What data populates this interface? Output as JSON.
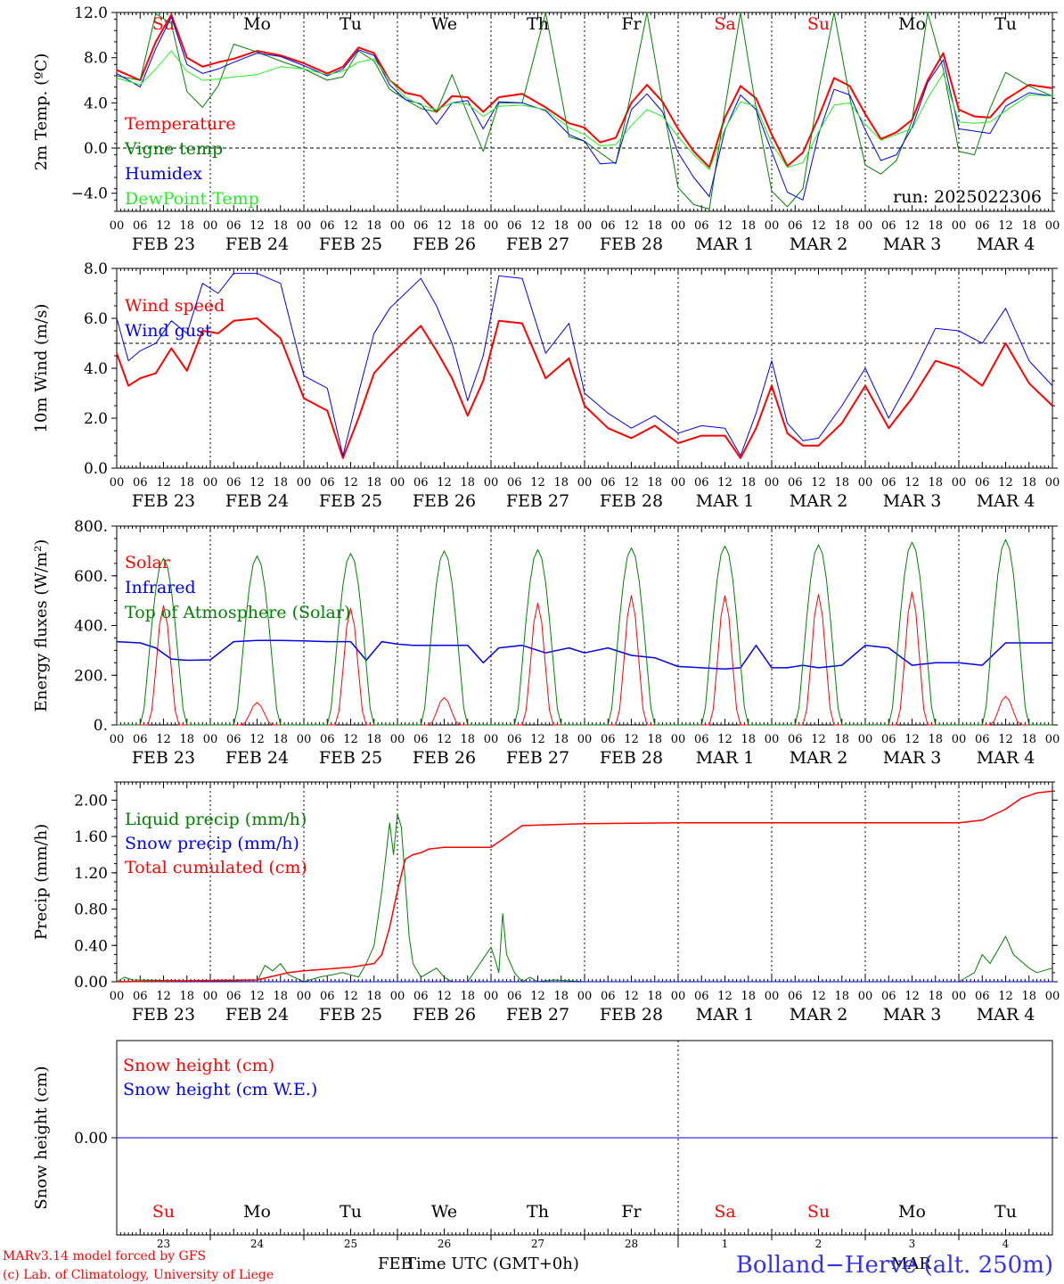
{
  "colors": {
    "red": "#ff0000",
    "darkred": "#e00000",
    "green": "#008000",
    "blue": "#0000ee",
    "lightgreen": "#22ee22",
    "site": "#3333ee"
  },
  "day_names": [
    "Su",
    "Mo",
    "Tu",
    "We",
    "Th",
    "Fr",
    "Sa",
    "Su",
    "Mo",
    "Tu"
  ],
  "date_labels": [
    "FEB 23",
    "FEB 24",
    "FEB 25",
    "FEB 26",
    "FEB 27",
    "FEB 28",
    "MAR  1",
    "MAR  2",
    "MAR  3",
    "MAR  4"
  ],
  "hour_labels": [
    "00",
    "06",
    "12",
    "18"
  ],
  "last_hour_label": "00",
  "weekend_days": [
    0,
    6,
    7
  ],
  "day_numbers": [
    "23",
    "24",
    "25",
    "26",
    "27",
    "28",
    "1",
    "2",
    "3",
    "4"
  ],
  "footer": {
    "model": "MARv3.14 model forced by GFS",
    "credit": "(c) Lab. of Climatology, University of Liege",
    "xlabel": "Time UTC (GMT+0h)",
    "month_left": "FEB",
    "month_right": "MAR",
    "site": "Bolland−Herve (alt. 250m)"
  },
  "chart_data": [
    {
      "type": "line",
      "id": "temp",
      "ylabel": "2m Temp. (ºC)",
      "ylim": [
        -5.6,
        12.0
      ],
      "yticks": [
        12.0,
        8.0,
        4.0,
        0.0,
        -4.0
      ],
      "ytick_labels": [
        "12.0",
        "8.0",
        "4.0",
        "0.0",
        "−4.0"
      ],
      "ref_line": 0.0,
      "annotation": "run: 2025022306",
      "x_hours": [
        0,
        6,
        10,
        14,
        18,
        22,
        26,
        30,
        36,
        42,
        48,
        54,
        58,
        62,
        66,
        70,
        74,
        78,
        82,
        86,
        90,
        94,
        98,
        104,
        110,
        116,
        120,
        124,
        128,
        132,
        136,
        140,
        144,
        148,
        152,
        156,
        160,
        164,
        168,
        172,
        176,
        180,
        184,
        188,
        192,
        196,
        200,
        204,
        208,
        212,
        216,
        220,
        224,
        228,
        234,
        240
      ],
      "series": [
        {
          "name": "Temperature",
          "color": "#ff0000",
          "width": 2,
          "values": [
            6.9,
            6.0,
            9.4,
            11.8,
            8.0,
            7.2,
            7.6,
            7.9,
            8.6,
            8.2,
            7.5,
            6.6,
            7.2,
            8.9,
            8.4,
            6.0,
            4.9,
            4.6,
            3.2,
            4.6,
            4.5,
            3.2,
            4.5,
            4.8,
            3.6,
            2.2,
            1.8,
            0.5,
            0.9,
            4.0,
            5.6,
            4.1,
            1.7,
            -0.3,
            -1.7,
            2.7,
            5.5,
            4.4,
            1.2,
            -1.6,
            -0.4,
            2.7,
            6.2,
            5.5,
            3.0,
            0.8,
            1.4,
            2.5,
            6.0,
            8.4,
            3.4,
            2.8,
            2.7,
            4.3,
            5.6,
            5.3
          ]
        },
        {
          "name": "Vigne temp",
          "color": "#008000",
          "width": 1,
          "values": [
            6.4,
            6.0,
            11.9,
            11.0,
            5.0,
            3.6,
            5.5,
            9.2,
            8.5,
            7.7,
            7.0,
            6.0,
            6.3,
            8.6,
            7.7,
            5.2,
            4.3,
            3.5,
            3.2,
            6.5,
            3.0,
            -0.3,
            4.0,
            4.0,
            12.0,
            1.0,
            0.6,
            -0.4,
            -1.4,
            5.0,
            12.0,
            4.0,
            -3.5,
            -5.0,
            -5.4,
            3.5,
            12.0,
            3.5,
            -3.8,
            -5.2,
            -3.6,
            5.0,
            12.0,
            4.5,
            -1.5,
            -2.3,
            -1.1,
            2.4,
            12.0,
            7.0,
            -0.3,
            -0.6,
            3.5,
            6.7,
            5.5,
            4.6
          ]
        },
        {
          "name": "Humidex",
          "color": "#0000ee",
          "width": 1,
          "values": [
            6.6,
            5.4,
            8.8,
            11.6,
            7.4,
            6.6,
            7.0,
            7.6,
            8.4,
            8.1,
            7.3,
            6.4,
            7.0,
            8.7,
            8.2,
            5.6,
            4.3,
            3.9,
            2.1,
            4.0,
            4.2,
            1.7,
            4.1,
            4.0,
            3.3,
            1.2,
            0.6,
            -1.4,
            -1.3,
            3.4,
            4.8,
            3.2,
            -0.4,
            -2.6,
            -4.3,
            1.6,
            4.7,
            3.4,
            -0.3,
            -3.9,
            -4.6,
            1.2,
            5.2,
            4.7,
            1.6,
            -1.1,
            -0.6,
            1.8,
            5.8,
            7.8,
            1.7,
            1.5,
            1.3,
            3.7,
            4.9,
            4.6
          ]
        },
        {
          "name": "DewPoint Temp",
          "color": "#22ee22",
          "width": 1,
          "values": [
            6.2,
            5.6,
            7.0,
            8.6,
            6.8,
            6.0,
            6.1,
            6.3,
            6.5,
            7.2,
            7.0,
            6.5,
            6.8,
            7.6,
            7.9,
            6.0,
            4.5,
            3.8,
            3.4,
            4.0,
            3.9,
            2.8,
            3.7,
            3.8,
            3.4,
            1.8,
            1.2,
            0.2,
            0.3,
            2.0,
            3.4,
            2.8,
            1.0,
            -0.6,
            -1.9,
            1.7,
            4.1,
            3.7,
            0.4,
            -1.7,
            -1.3,
            1.4,
            3.8,
            4.0,
            2.1,
            0.7,
            1.2,
            1.7,
            4.4,
            6.6,
            2.3,
            2.2,
            2.3,
            3.3,
            4.7,
            4.6
          ]
        }
      ]
    },
    {
      "type": "line",
      "id": "wind",
      "ylabel": "10m Wind (m/s)",
      "ylim": [
        0.0,
        8.0
      ],
      "yticks": [
        8.0,
        6.0,
        4.0,
        2.0,
        0.0
      ],
      "ytick_labels": [
        "8.0",
        "6.0",
        "4.0",
        "2.0",
        "0.0"
      ],
      "ref_line": 5.0,
      "x_hours": [
        0,
        3,
        6,
        10,
        14,
        18,
        22,
        26,
        30,
        36,
        42,
        48,
        54,
        58,
        62,
        66,
        70,
        74,
        78,
        82,
        86,
        90,
        94,
        98,
        104,
        110,
        116,
        120,
        126,
        132,
        138,
        144,
        150,
        156,
        160,
        164,
        168,
        172,
        176,
        180,
        186,
        192,
        198,
        204,
        210,
        216,
        222,
        228,
        234,
        240
      ],
      "series": [
        {
          "name": "Wind speed",
          "color": "#ff0000",
          "width": 2,
          "values": [
            4.6,
            3.3,
            3.6,
            3.8,
            4.8,
            3.9,
            5.5,
            5.4,
            5.9,
            6.0,
            5.2,
            2.8,
            2.3,
            0.4,
            2.0,
            3.8,
            4.5,
            5.1,
            5.7,
            4.7,
            3.6,
            2.1,
            3.5,
            5.9,
            5.8,
            3.6,
            4.4,
            2.5,
            1.6,
            1.2,
            1.7,
            1.0,
            1.3,
            1.3,
            0.4,
            1.6,
            3.3,
            1.4,
            0.9,
            0.9,
            1.8,
            3.3,
            1.6,
            2.8,
            4.3,
            4.0,
            3.3,
            5.0,
            3.4,
            2.5
          ]
        },
        {
          "name": "Wind gust",
          "color": "#0000ee",
          "width": 1,
          "values": [
            6.0,
            4.3,
            4.7,
            5.0,
            5.9,
            5.4,
            7.4,
            7.0,
            7.8,
            7.8,
            7.4,
            3.7,
            3.2,
            0.5,
            3.0,
            5.4,
            6.4,
            7.0,
            7.6,
            6.5,
            5.0,
            2.7,
            4.5,
            7.7,
            7.6,
            4.6,
            5.8,
            3.0,
            2.2,
            1.6,
            2.1,
            1.4,
            1.7,
            1.6,
            0.5,
            2.2,
            4.3,
            1.8,
            1.1,
            1.2,
            2.5,
            4.0,
            2.0,
            3.7,
            5.6,
            5.5,
            5.0,
            6.4,
            4.3,
            3.3
          ]
        }
      ]
    },
    {
      "type": "line",
      "id": "flux",
      "ylabel": "Energy fluxes (W/m²)",
      "ylim": [
        0,
        800
      ],
      "yticks": [
        800,
        600,
        400,
        200,
        0
      ],
      "ytick_labels": [
        "800.",
        "600.",
        "400.",
        "200.",
        "0."
      ],
      "series": [
        {
          "name": "Solar",
          "color": "#ff0000",
          "width": 1,
          "peaks": [
            480,
            90,
            470,
            110,
            490,
            520,
            520,
            525,
            535,
            115
          ]
        },
        {
          "name": "Infrared",
          "color": "#0000ee",
          "width": 1.5,
          "x_hours": [
            0,
            6,
            10,
            14,
            18,
            24,
            30,
            36,
            42,
            48,
            54,
            60,
            64,
            68,
            72,
            76,
            80,
            90,
            94,
            98,
            104,
            110,
            116,
            120,
            126,
            132,
            138,
            144,
            150,
            156,
            160,
            164,
            168,
            172,
            176,
            180,
            186,
            192,
            198,
            204,
            210,
            216,
            222,
            228,
            234,
            240
          ],
          "values": [
            335,
            330,
            310,
            265,
            260,
            262,
            335,
            340,
            340,
            338,
            335,
            335,
            260,
            335,
            325,
            320,
            320,
            320,
            250,
            310,
            320,
            290,
            310,
            290,
            310,
            280,
            270,
            235,
            230,
            225,
            230,
            320,
            230,
            230,
            240,
            230,
            240,
            320,
            310,
            240,
            250,
            250,
            240,
            330,
            330,
            330
          ]
        },
        {
          "name": "Top of Atmosphere (Solar)",
          "color": "#008000",
          "width": 1,
          "peaks": [
            670,
            680,
            690,
            700,
            705,
            712,
            720,
            725,
            735,
            745
          ]
        }
      ]
    },
    {
      "type": "line",
      "id": "precip",
      "ylabel": "Precip (mm/h)",
      "ylim": [
        0.0,
        2.2
      ],
      "yticks": [
        2.0,
        1.6,
        1.2,
        0.8,
        0.4,
        0.0
      ],
      "ytick_labels": [
        "2.00",
        "1.60",
        "1.20",
        "0.80",
        "0.40",
        "0.00"
      ],
      "series": [
        {
          "name": "Liquid precip (mm/h)",
          "color": "#008000",
          "width": 1,
          "x_hours": [
            0,
            2,
            4,
            36,
            38,
            40,
            42,
            44,
            48,
            52,
            58,
            62,
            64,
            66,
            68,
            70,
            71,
            72,
            73,
            74,
            75,
            76,
            78,
            80,
            82,
            84,
            86,
            88,
            90,
            96,
            97,
            98,
            99,
            100,
            102,
            104,
            106,
            108,
            112,
            120,
            216,
            220,
            222,
            224,
            226,
            228,
            230,
            234,
            236,
            240
          ],
          "values": [
            0.0,
            0.05,
            0.02,
            0.0,
            0.18,
            0.12,
            0.2,
            0.08,
            0.0,
            0.05,
            0.1,
            0.05,
            0.2,
            0.4,
            1.0,
            1.75,
            1.4,
            1.85,
            1.7,
            1.1,
            0.5,
            0.2,
            0.05,
            0.1,
            0.15,
            0.05,
            0.0,
            0.0,
            0.0,
            0.38,
            0.25,
            0.1,
            0.75,
            0.3,
            0.1,
            0.0,
            0.05,
            0.0,
            0.02,
            0.0,
            0.0,
            0.1,
            0.3,
            0.2,
            0.35,
            0.5,
            0.3,
            0.15,
            0.1,
            0.15
          ]
        },
        {
          "name": "Snow precip (mm/h)",
          "color": "#0000ee",
          "width": 1,
          "x_hours": [
            0,
            240
          ],
          "values": [
            0.0,
            0.0
          ]
        },
        {
          "name": "Total cumulated (cm)",
          "color": "#ff0000",
          "width": 1.5,
          "x_hours": [
            0,
            36,
            40,
            44,
            48,
            54,
            60,
            66,
            68,
            70,
            72,
            74,
            76,
            78,
            80,
            84,
            90,
            96,
            100,
            104,
            120,
            144,
            168,
            192,
            216,
            222,
            228,
            232,
            236,
            240
          ],
          "values": [
            0.0,
            0.02,
            0.06,
            0.1,
            0.12,
            0.14,
            0.16,
            0.2,
            0.3,
            0.6,
            1.0,
            1.35,
            1.4,
            1.42,
            1.46,
            1.48,
            1.48,
            1.48,
            1.6,
            1.72,
            1.74,
            1.75,
            1.75,
            1.75,
            1.75,
            1.78,
            1.9,
            2.02,
            2.08,
            2.1
          ]
        }
      ]
    },
    {
      "type": "line",
      "id": "snow",
      "ylabel": "Snow height (cm)",
      "ylim": [
        -1,
        1
      ],
      "yticks": [
        0.0
      ],
      "ytick_labels": [
        "0.00"
      ],
      "series": [
        {
          "name": "Snow height (cm)",
          "color": "#ff0000",
          "width": 1,
          "x_hours": [
            0,
            240
          ],
          "values": [
            0.0,
            0.0
          ]
        },
        {
          "name": "Snow height (cm W.E.)",
          "color": "#0000ee",
          "width": 1,
          "x_hours": [
            0,
            240
          ],
          "values": [
            0.0,
            0.0
          ]
        }
      ]
    }
  ]
}
